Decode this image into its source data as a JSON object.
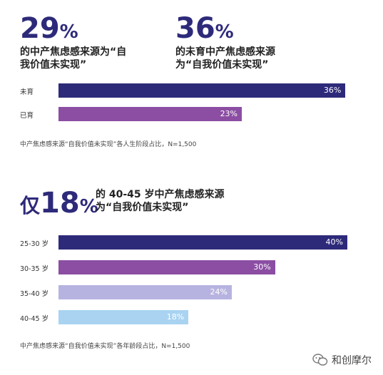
{
  "chart_data": [
    {
      "type": "bar",
      "orientation": "horizontal",
      "headline": [
        {
          "value": "29",
          "unit": "%",
          "text_line1": "的中产焦虑感来源为“自",
          "text_line2": "我价值未实现”"
        },
        {
          "value": "36",
          "unit": "%",
          "text_line1": "的未育中产焦虑感来源",
          "text_line2": "为“自我价值未实现”"
        }
      ],
      "categories": [
        "未育",
        "已育"
      ],
      "values": [
        36,
        23
      ],
      "value_labels": [
        "36%",
        "23%"
      ],
      "colors": [
        "#2e2a7a",
        "#8b4ea3"
      ],
      "xlim": [
        0,
        40
      ],
      "note": "中产焦虑感来源“自我价值未实现”各人生阶段占比，N=1,500"
    },
    {
      "type": "bar",
      "orientation": "horizontal",
      "headline": {
        "prefix": "仅",
        "value": "18",
        "unit": "%",
        "text_line1": "的 40-45 岁中产焦虑感来源",
        "text_line2": "为“自我价值未实现”"
      },
      "categories": [
        "25-30 岁",
        "30-35 岁",
        "35-40 岁",
        "40-45 岁"
      ],
      "values": [
        40,
        30,
        24,
        18
      ],
      "value_labels": [
        "40%",
        "30%",
        "24%",
        "18%"
      ],
      "colors": [
        "#2e2a7a",
        "#8b4ea3",
        "#b7b3e0",
        "#a9d3f1"
      ],
      "xlim": [
        0,
        40
      ],
      "note": "中产焦虑感来源“自我价值未实现”各年龄段占比，N=1,500"
    }
  ],
  "watermark": {
    "text": "和创摩尔",
    "icon": "wechat-icon"
  }
}
